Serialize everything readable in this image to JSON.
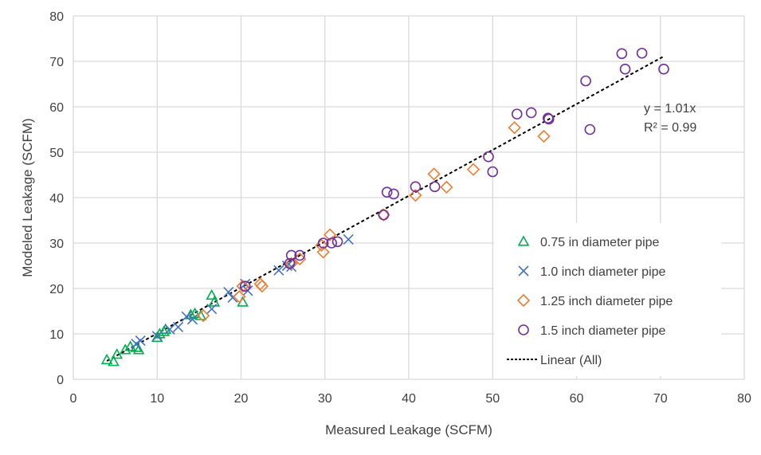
{
  "chart_data": {
    "type": "scatter",
    "title": "",
    "xlabel": "Measured Leakage (SCFM)",
    "ylabel": "Modeled Leakage (SCFM)",
    "xlim": [
      0,
      80
    ],
    "ylim": [
      0,
      80
    ],
    "xticks": [
      0,
      10,
      20,
      30,
      40,
      50,
      60,
      70,
      80
    ],
    "yticks": [
      0,
      10,
      20,
      30,
      40,
      50,
      60,
      70,
      80
    ],
    "grid": true,
    "legend_position": "bottom-right",
    "series": [
      {
        "name": "0.75 in diameter pipe",
        "marker": "triangle",
        "color": "#00b050",
        "points": [
          [
            4,
            4.3
          ],
          [
            4.8,
            3.9
          ],
          [
            5.2,
            5.5
          ],
          [
            6.2,
            6.5
          ],
          [
            6.8,
            7.2
          ],
          [
            7.5,
            7
          ],
          [
            7.8,
            6.5
          ],
          [
            10,
            9.2
          ],
          [
            10.3,
            10
          ],
          [
            10.8,
            10.5
          ],
          [
            11,
            11
          ],
          [
            14,
            14.2
          ],
          [
            14.5,
            14.5
          ],
          [
            15.2,
            14
          ],
          [
            16.5,
            18.5
          ],
          [
            16.8,
            17
          ],
          [
            20.2,
            17
          ]
        ]
      },
      {
        "name": "1.0 inch diameter pipe",
        "marker": "x",
        "color": "#4472c4",
        "points": [
          [
            7.5,
            7.8
          ],
          [
            8,
            8.5
          ],
          [
            10,
            9.5
          ],
          [
            11.5,
            11
          ],
          [
            12.5,
            11.5
          ],
          [
            13.5,
            13.8
          ],
          [
            14.2,
            13.2
          ],
          [
            16.5,
            15.5
          ],
          [
            18.5,
            19.2
          ],
          [
            19,
            18
          ],
          [
            20.5,
            21
          ],
          [
            20.8,
            19.5
          ],
          [
            24.5,
            24
          ],
          [
            25.5,
            25
          ],
          [
            26,
            24.8
          ],
          [
            32.8,
            30.8
          ]
        ]
      },
      {
        "name": "1.25 inch diameter pipe",
        "marker": "diamond",
        "color": "#ed7d31",
        "points": [
          [
            15.5,
            14
          ],
          [
            19.8,
            18.2
          ],
          [
            20.2,
            20.5
          ],
          [
            22.3,
            21
          ],
          [
            22.5,
            20.5
          ],
          [
            26,
            25.5
          ],
          [
            27,
            26.5
          ],
          [
            29.6,
            29.5
          ],
          [
            29.8,
            28
          ],
          [
            30.6,
            31.8
          ],
          [
            37,
            36.2
          ],
          [
            40.8,
            40.5
          ],
          [
            43,
            45.2
          ],
          [
            44.5,
            42.3
          ],
          [
            47.7,
            46.2
          ],
          [
            52.6,
            55.4
          ],
          [
            56.1,
            53.5
          ]
        ]
      },
      {
        "name": "1.5 inch diameter pipe",
        "marker": "circle",
        "color": "#7030a0",
        "points": [
          [
            20.5,
            20.5
          ],
          [
            25.8,
            25.5
          ],
          [
            26,
            27.3
          ],
          [
            27,
            27.3
          ],
          [
            29.8,
            30
          ],
          [
            30.8,
            30
          ],
          [
            31.5,
            30.3
          ],
          [
            37,
            36.2
          ],
          [
            37.4,
            41.2
          ],
          [
            38.2,
            40.8
          ],
          [
            40.8,
            42.4
          ],
          [
            43.1,
            42.4
          ],
          [
            49.5,
            49
          ],
          [
            50,
            45.7
          ],
          [
            52.9,
            58.4
          ],
          [
            54.6,
            58.7
          ],
          [
            56.6,
            57.5
          ],
          [
            56.7,
            57.3
          ],
          [
            61.1,
            65.7
          ],
          [
            61.6,
            55
          ],
          [
            65.4,
            71.7
          ],
          [
            65.8,
            68.3
          ],
          [
            67.8,
            71.8
          ],
          [
            70.4,
            68.3
          ]
        ]
      }
    ],
    "trendline": {
      "name": "Linear (All)",
      "slope": 1.01,
      "x_range": [
        4,
        70.5
      ],
      "color": "#000000",
      "equation": "y = 1.01x",
      "r2": "R² = 0.99"
    }
  }
}
